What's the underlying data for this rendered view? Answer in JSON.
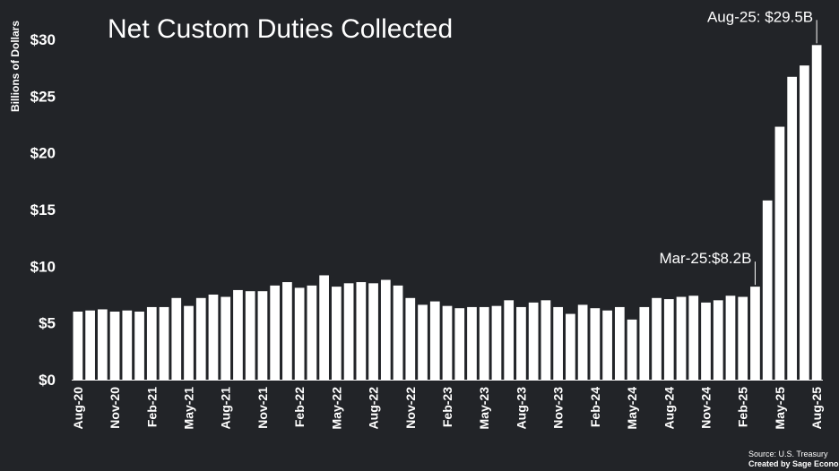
{
  "chart_data": {
    "type": "bar",
    "title": "Net Custom Duties Collected",
    "ylabel": "Billions of Dollars",
    "xlabel": "",
    "ylim": [
      0,
      30
    ],
    "yticks": [
      0,
      5,
      10,
      15,
      20,
      25,
      30
    ],
    "ytick_labels": [
      "$0",
      "$5",
      "$10",
      "$15",
      "$20",
      "$25",
      "$30"
    ],
    "xtick_labels": [
      "Aug-20",
      "Nov-20",
      "Feb-21",
      "May-21",
      "Aug-21",
      "Nov-21",
      "Feb-22",
      "May-22",
      "Aug-22",
      "Nov-22",
      "Feb-23",
      "May-23",
      "Aug-23",
      "Nov-23",
      "Feb-24",
      "May-24",
      "Aug-24",
      "Nov-24",
      "Feb-25",
      "May-25",
      "Aug-25"
    ],
    "xtick_every": 3,
    "grid": false,
    "legend": "none",
    "bar_color": "#ffffff",
    "background_color": "#222428",
    "categories": [
      "Aug-20",
      "Sep-20",
      "Oct-20",
      "Nov-20",
      "Dec-20",
      "Jan-21",
      "Feb-21",
      "Mar-21",
      "Apr-21",
      "May-21",
      "Jun-21",
      "Jul-21",
      "Aug-21",
      "Sep-21",
      "Oct-21",
      "Nov-21",
      "Dec-21",
      "Jan-22",
      "Feb-22",
      "Mar-22",
      "Apr-22",
      "May-22",
      "Jun-22",
      "Jul-22",
      "Aug-22",
      "Sep-22",
      "Oct-22",
      "Nov-22",
      "Dec-22",
      "Jan-23",
      "Feb-23",
      "Mar-23",
      "Apr-23",
      "May-23",
      "Jun-23",
      "Jul-23",
      "Aug-23",
      "Sep-23",
      "Oct-23",
      "Nov-23",
      "Dec-23",
      "Jan-24",
      "Feb-24",
      "Mar-24",
      "Apr-24",
      "May-24",
      "Jun-24",
      "Jul-24",
      "Aug-24",
      "Sep-24",
      "Oct-24",
      "Nov-24",
      "Dec-24",
      "Jan-25",
      "Feb-25",
      "Mar-25",
      "Apr-25",
      "May-25",
      "Jun-25",
      "Jul-25",
      "Aug-25"
    ],
    "values": [
      6.0,
      6.1,
      6.2,
      6.0,
      6.1,
      6.0,
      6.4,
      6.4,
      7.2,
      6.5,
      7.2,
      7.5,
      7.3,
      7.9,
      7.8,
      7.8,
      8.3,
      8.6,
      8.1,
      8.3,
      9.2,
      8.2,
      8.5,
      8.6,
      8.5,
      8.8,
      8.3,
      7.2,
      6.6,
      6.9,
      6.5,
      6.3,
      6.4,
      6.4,
      6.5,
      7.0,
      6.4,
      6.8,
      7.0,
      6.4,
      5.8,
      6.6,
      6.3,
      6.1,
      6.4,
      5.3,
      6.4,
      7.2,
      7.1,
      7.3,
      7.4,
      6.8,
      7.0,
      7.4,
      7.3,
      8.2,
      15.8,
      22.3,
      26.7,
      27.7,
      29.5
    ],
    "annotations": [
      {
        "category": "Mar-25",
        "text": "Mar-25:$8.2B"
      },
      {
        "category": "Aug-25",
        "text": "Aug-25: $29.5B"
      }
    ],
    "source_lines": [
      "Source:  U.S. Treasury",
      "Created by Sage Economics"
    ]
  }
}
